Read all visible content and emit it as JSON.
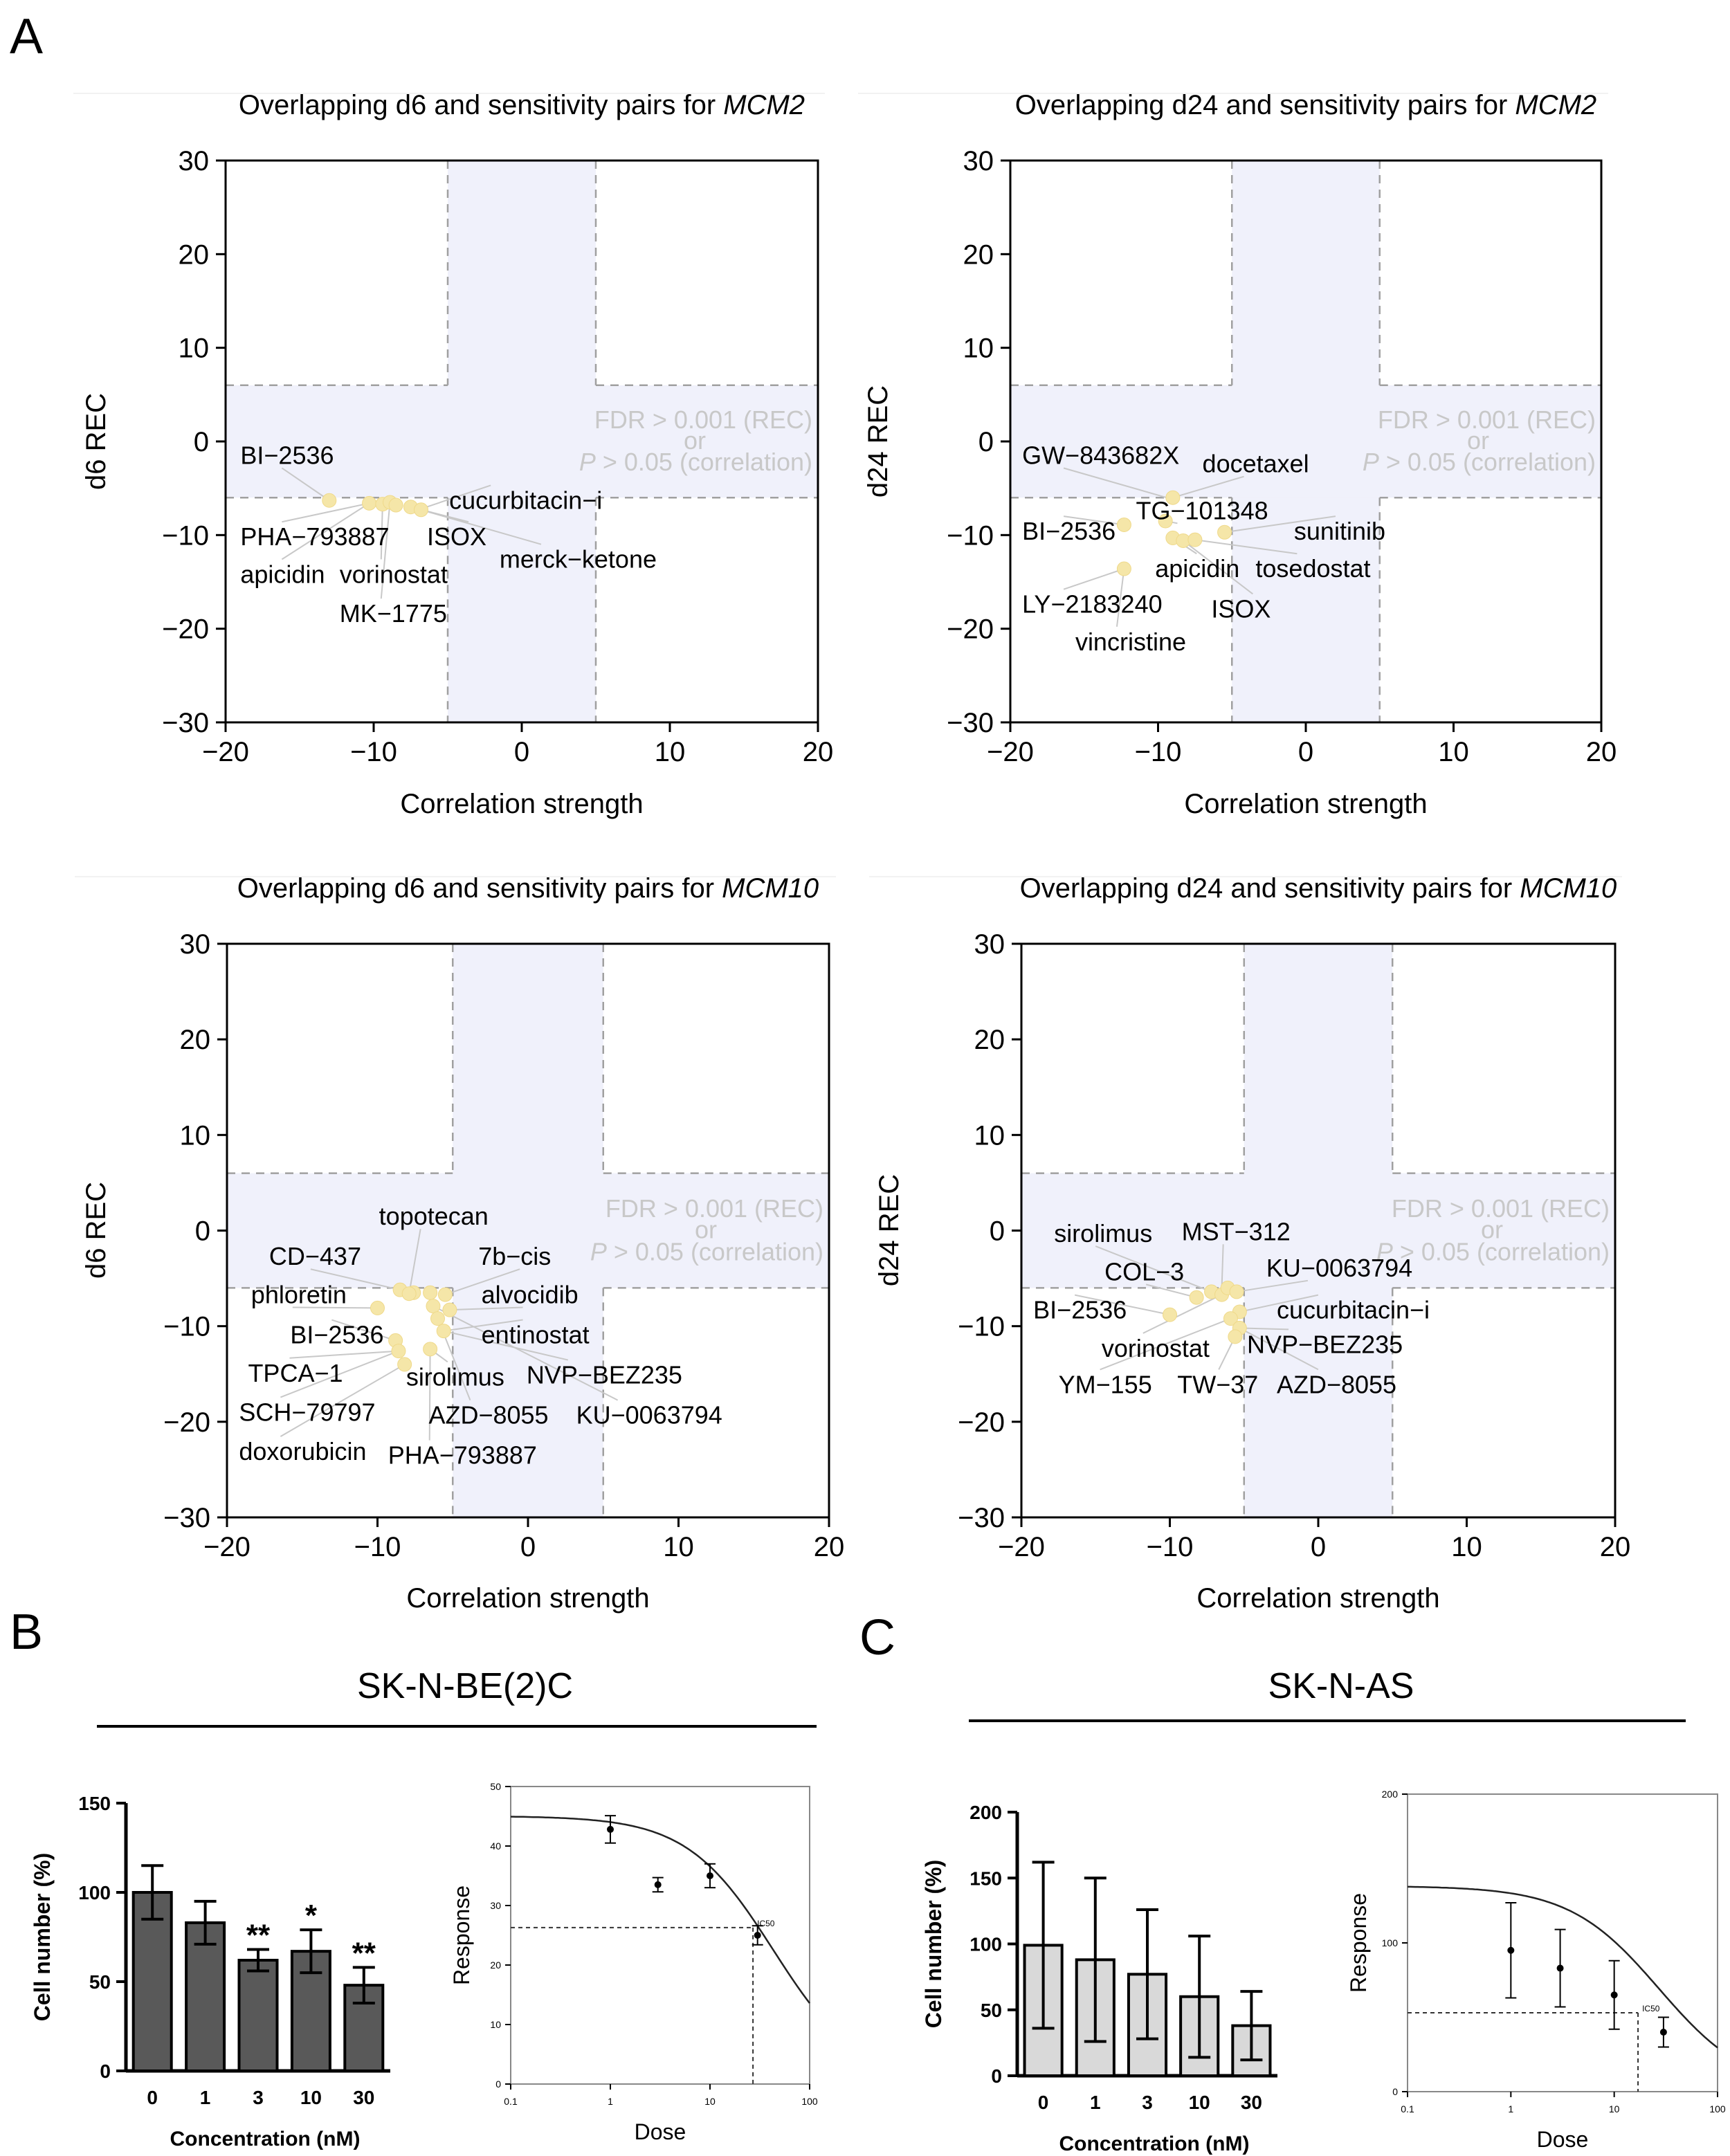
{
  "panel_labels": {
    "a": "A",
    "b": "B",
    "c": "C"
  },
  "titles": {
    "prefix_d6": "Overlapping d6 and sensitivity pairs for ",
    "prefix_d24": "Overlapping d24 and sensitivity pairs for ",
    "mcm2": "MCM2",
    "mcm10": "MCM10"
  },
  "annotation": {
    "line1": "FDR > 0.001 (REC)",
    "line2": "or",
    "line3_p": "P",
    "line3_rest": " > 0.05 (correlation)"
  },
  "cell_lines": {
    "b": "SK-N-BE(2)C",
    "c": "SK-N-AS"
  },
  "colors": {
    "point": "#f5e6a8",
    "shade": "#f0f1fb",
    "dark_bar": "#595959",
    "light_bar": "#d9d9d9",
    "annotation": "#c8c8c8"
  },
  "chart_data": [
    {
      "type": "scatter",
      "id": "d6-mcm2",
      "title": "Overlapping d6 and sensitivity pairs for MCM2",
      "xlabel": "Correlation strength",
      "ylabel": "d6 REC",
      "xlim": [
        -20,
        20
      ],
      "ylim": [
        -30,
        30
      ],
      "xticks": [
        "−20",
        "−10",
        "0",
        "10",
        "20"
      ],
      "yticks": [
        "30",
        "20",
        "10",
        "0",
        "−10",
        "−20",
        "−30"
      ],
      "shade": {
        "x": [
          -5,
          5
        ],
        "y": [
          -6,
          6
        ]
      },
      "points": [
        {
          "x": -13,
          "y": -6.3
        },
        {
          "x": -10.3,
          "y": -6.6
        },
        {
          "x": -9.4,
          "y": -6.7
        },
        {
          "x": -8.9,
          "y": -6.5
        },
        {
          "x": -8.5,
          "y": -6.8
        },
        {
          "x": -7.5,
          "y": -7.0
        },
        {
          "x": -6.8,
          "y": -7.3
        }
      ],
      "labels": [
        {
          "text": "BI−2536",
          "lx": -19,
          "ly": -2.4,
          "px": -13,
          "py": -6.3
        },
        {
          "text": "cucurbitacin−i",
          "lx": -4.9,
          "ly": -7.2,
          "px": -6.8,
          "py": -7.2
        },
        {
          "text": "PHA−793887",
          "lx": -19,
          "ly": -11.1,
          "px": -10.3,
          "py": -6.6
        },
        {
          "text": "ISOX",
          "lx": -6.4,
          "ly": -11.1,
          "px": -7.5,
          "py": -7.0
        },
        {
          "text": "merck−ketone",
          "lx": -1.5,
          "ly": -13.5,
          "px": -6.8,
          "py": -7.3
        },
        {
          "text": "apicidin",
          "lx": -19,
          "ly": -15.1,
          "px": -10.3,
          "py": -6.6
        },
        {
          "text": "vorinostat",
          "lx": -12.3,
          "ly": -15.1,
          "px": -9.4,
          "py": -6.7
        },
        {
          "text": "MK−1775",
          "lx": -12.3,
          "ly": -19.3,
          "px": -8.9,
          "py": -6.5
        }
      ]
    },
    {
      "type": "scatter",
      "id": "d24-mcm2",
      "title": "Overlapping d24 and sensitivity pairs for MCM2",
      "xlabel": "Correlation strength",
      "ylabel": "d24 REC",
      "xlim": [
        -20,
        20
      ],
      "ylim": [
        -30,
        30
      ],
      "xticks": [
        "−20",
        "−10",
        "0",
        "10",
        "20"
      ],
      "yticks": [
        "30",
        "20",
        "10",
        "0",
        "−10",
        "−20",
        "−30"
      ],
      "shade": {
        "x": [
          -5,
          5
        ],
        "y": [
          -6,
          6
        ]
      },
      "points": [
        {
          "x": -9,
          "y": -6
        },
        {
          "x": -9.5,
          "y": -8.5
        },
        {
          "x": -9,
          "y": -10.3
        },
        {
          "x": -8.3,
          "y": -10.6
        },
        {
          "x": -7.5,
          "y": -10.5
        },
        {
          "x": -5.5,
          "y": -9.7
        },
        {
          "x": -12.3,
          "y": -8.9
        },
        {
          "x": -12.3,
          "y": -13.6
        }
      ],
      "labels": [
        {
          "text": "GW−843682X",
          "lx": -19.2,
          "ly": -2.4,
          "px": -9.2,
          "py": -6.1
        },
        {
          "text": "docetaxel",
          "lx": -7.0,
          "ly": -3.3,
          "px": -9.0,
          "py": -6.0
        },
        {
          "text": "TG−101348",
          "lx": -11.5,
          "ly": -8.3,
          "px": -9.5,
          "py": -8.5
        },
        {
          "text": "BI−2536",
          "lx": -19.2,
          "ly": -10.5,
          "px": -12.3,
          "py": -8.9
        },
        {
          "text": "sunitinib",
          "lx": -0.8,
          "ly": -10.5,
          "px": -5.5,
          "py": -9.7
        },
        {
          "text": "apicidin",
          "lx": -10.2,
          "ly": -14.5,
          "px": -9.0,
          "py": -10.3
        },
        {
          "text": "tosedostat",
          "lx": -3.4,
          "ly": -14.5,
          "px": -7.5,
          "py": -10.5
        },
        {
          "text": "LY−2183240",
          "lx": -19.2,
          "ly": -18.3,
          "px": -12.3,
          "py": -13.6
        },
        {
          "text": "ISOX",
          "lx": -6.4,
          "ly": -18.8,
          "px": -8.3,
          "py": -10.6
        },
        {
          "text": "vincristine",
          "lx": -15.6,
          "ly": -22.3,
          "px": -12.3,
          "py": -13.6
        }
      ]
    },
    {
      "type": "scatter",
      "id": "d6-mcm10",
      "title": "Overlapping d6 and sensitivity pairs for MCM10",
      "xlabel": "Correlation strength",
      "ylabel": "d6 REC",
      "xlim": [
        -20,
        20
      ],
      "ylim": [
        -30,
        30
      ],
      "xticks": [
        "−20",
        "−10",
        "0",
        "10",
        "20"
      ],
      "yticks": [
        "30",
        "20",
        "10",
        "0",
        "−10",
        "−20",
        "−30"
      ],
      "shade": {
        "x": [
          -5,
          5
        ],
        "y": [
          -6,
          6
        ]
      },
      "points": [
        {
          "x": -8.5,
          "y": -6.2
        },
        {
          "x": -7.6,
          "y": -6.5
        },
        {
          "x": -7.9,
          "y": -6.6
        },
        {
          "x": -6.5,
          "y": -6.5
        },
        {
          "x": -5.5,
          "y": -6.7
        },
        {
          "x": -10,
          "y": -8.1
        },
        {
          "x": -6.3,
          "y": -7.9
        },
        {
          "x": -5.2,
          "y": -8.3
        },
        {
          "x": -6,
          "y": -9.2
        },
        {
          "x": -5.6,
          "y": -10.5
        },
        {
          "x": -8.8,
          "y": -11.5
        },
        {
          "x": -8.6,
          "y": -12.6
        },
        {
          "x": -6.5,
          "y": -12.4
        },
        {
          "x": -8.2,
          "y": -14
        }
      ],
      "labels": [
        {
          "text": "topotecan",
          "lx": -9.9,
          "ly": 0.6,
          "px": -7.9,
          "py": -6.6
        },
        {
          "text": "CD−437",
          "lx": -17.2,
          "ly": -3.6,
          "px": -8.5,
          "py": -6.2
        },
        {
          "text": "7b−cis",
          "lx": -3.3,
          "ly": -3.6,
          "px": -5.5,
          "py": -6.7
        },
        {
          "text": "phloretin",
          "lx": -18.4,
          "ly": -7.6,
          "px": -10.0,
          "py": -8.1
        },
        {
          "text": "alvocidib",
          "lx": -3.1,
          "ly": -7.6,
          "px": -5.2,
          "py": -8.3
        },
        {
          "text": "BI−2536",
          "lx": -15.8,
          "ly": -11.8,
          "px": -8.8,
          "py": -11.5
        },
        {
          "text": "entinostat",
          "lx": -3.1,
          "ly": -11.8,
          "px": -5.6,
          "py": -10.5
        },
        {
          "text": "TPCA−1",
          "lx": -18.6,
          "ly": -15.8,
          "px": -8.6,
          "py": -12.6
        },
        {
          "text": "sirolimus",
          "lx": -8.1,
          "ly": -16.2,
          "px": -6.5,
          "py": -12.4
        },
        {
          "text": "NVP−BEZ235",
          "lx": -0.1,
          "ly": -16.0,
          "px": -5.6,
          "py": -10.5
        },
        {
          "text": "SCH−79797",
          "lx": -19.2,
          "ly": -19.9,
          "px": -8.6,
          "py": -12.6
        },
        {
          "text": "AZD−8055",
          "lx": -6.6,
          "ly": -20.2,
          "px": -6.0,
          "py": -9.2
        },
        {
          "text": "KU−0063794",
          "lx": 3.2,
          "ly": -20.2,
          "px": -6.3,
          "py": -7.9
        },
        {
          "text": "doxorubicin",
          "lx": -19.2,
          "ly": -24.0,
          "px": -8.2,
          "py": -14.0
        },
        {
          "text": "PHA−793887",
          "lx": -9.3,
          "ly": -24.4,
          "px": -6.5,
          "py": -12.4
        }
      ]
    },
    {
      "type": "scatter",
      "id": "d24-mcm10",
      "title": "Overlapping d24 and sensitivity pairs for MCM10",
      "xlabel": "Correlation strength",
      "ylabel": "d24 REC",
      "xlim": [
        -20,
        20
      ],
      "ylim": [
        -30,
        30
      ],
      "xticks": [
        "−20",
        "−10",
        "0",
        "10",
        "20"
      ],
      "yticks": [
        "30",
        "20",
        "10",
        "0",
        "−10",
        "−20",
        "−30"
      ],
      "shade": {
        "x": [
          -5,
          5
        ],
        "y": [
          -6,
          6
        ]
      },
      "points": [
        {
          "x": -10,
          "y": -8.8
        },
        {
          "x": -8.2,
          "y": -7
        },
        {
          "x": -7.2,
          "y": -6.4
        },
        {
          "x": -6.5,
          "y": -6.7
        },
        {
          "x": -6.1,
          "y": -6.0
        },
        {
          "x": -5.5,
          "y": -6.4
        },
        {
          "x": -5.3,
          "y": -8.5
        },
        {
          "x": -5.9,
          "y": -9.2
        },
        {
          "x": -5.3,
          "y": -10.2
        },
        {
          "x": -5.6,
          "y": -11.1
        }
      ],
      "labels": [
        {
          "text": "sirolimus",
          "lx": -17.8,
          "ly": -1.2,
          "px": -7.2,
          "py": -6.4
        },
        {
          "text": "MST−312",
          "lx": -9.2,
          "ly": -1.0,
          "px": -6.5,
          "py": -6.0
        },
        {
          "text": "COL−3",
          "lx": -14.4,
          "ly": -5.2,
          "px": -8.2,
          "py": -7.0
        },
        {
          "text": "KU−0063794",
          "lx": -3.5,
          "ly": -4.8,
          "px": -5.5,
          "py": -6.4
        },
        {
          "text": "BI−2536",
          "lx": -19.2,
          "ly": -9.2,
          "px": -10.0,
          "py": -8.8
        },
        {
          "text": "cucurbitacin−i",
          "lx": -2.8,
          "ly": -9.2,
          "px": -5.3,
          "py": -8.5
        },
        {
          "text": "vorinostat",
          "lx": -14.6,
          "ly": -13.2,
          "px": -6.5,
          "py": -6.7
        },
        {
          "text": "NVP−BEZ235",
          "lx": -4.8,
          "ly": -12.8,
          "px": -5.3,
          "py": -10.2
        },
        {
          "text": "YM−155",
          "lx": -17.5,
          "ly": -17.0,
          "px": -5.9,
          "py": -9.2
        },
        {
          "text": "TW−37",
          "lx": -9.5,
          "ly": -17.0,
          "px": -5.6,
          "py": -11.1
        },
        {
          "text": "AZD−8055",
          "lx": -2.8,
          "ly": -17.0,
          "px": -5.3,
          "py": -10.2
        }
      ]
    },
    {
      "type": "bar",
      "id": "sknbe2c-bar",
      "categories": [
        "0",
        "1",
        "3",
        "10",
        "30"
      ],
      "values": [
        100,
        83,
        62,
        67,
        48
      ],
      "errors": [
        15,
        12,
        6,
        12,
        10
      ],
      "significance": [
        "",
        "",
        "**",
        "*",
        "**"
      ],
      "xlabel": "Concentration (nM)",
      "ylabel": "Cell number (%)",
      "ylim": [
        0,
        150
      ],
      "yticks": [
        "0",
        "50",
        "100",
        "150"
      ]
    },
    {
      "type": "line",
      "id": "sknbe2c-dose",
      "xlabel": "Dose",
      "ylabel": "Response",
      "xscale": "log",
      "xlim": [
        0.1,
        100
      ],
      "ylim": [
        0,
        50
      ],
      "xticks": [
        "0.1",
        "1",
        "10",
        "100"
      ],
      "yticks": [
        "0",
        "10",
        "20",
        "30",
        "40",
        "50"
      ],
      "points": [
        {
          "x": 1,
          "y": 42.8,
          "err": 2.3
        },
        {
          "x": 3,
          "y": 33.5,
          "err": 1.2
        },
        {
          "x": 10,
          "y": 35,
          "err": 2.0
        },
        {
          "x": 30,
          "y": 25,
          "err": 1.6
        }
      ],
      "ic50": {
        "x": 27,
        "y": 26.3,
        "label": "IC50"
      }
    },
    {
      "type": "bar",
      "id": "sknas-bar",
      "categories": [
        "0",
        "1",
        "3",
        "10",
        "30"
      ],
      "values": [
        99,
        88,
        77,
        60,
        38
      ],
      "errors": [
        63,
        62,
        49,
        46,
        26
      ],
      "significance": [
        "",
        "",
        "",
        "",
        ""
      ],
      "xlabel": "Concentration (nM)",
      "ylabel": "Cell number (%)",
      "ylim": [
        0,
        200
      ],
      "yticks": [
        "0",
        "50",
        "100",
        "150",
        "200"
      ]
    },
    {
      "type": "line",
      "id": "sknas-dose",
      "xlabel": "Dose",
      "ylabel": "Response",
      "xscale": "log",
      "xlim": [
        0.1,
        100
      ],
      "ylim": [
        0,
        200
      ],
      "xticks": [
        "0.1",
        "1",
        "10",
        "100"
      ],
      "yticks": [
        "0",
        "100",
        "200"
      ],
      "points": [
        {
          "x": 1,
          "y": 95,
          "err": 32
        },
        {
          "x": 3,
          "y": 83,
          "err": 26
        },
        {
          "x": 10,
          "y": 65,
          "err": 23
        },
        {
          "x": 30,
          "y": 40,
          "err": 10
        }
      ],
      "ic50": {
        "x": 17,
        "y": 53,
        "label": "IC50"
      }
    }
  ]
}
